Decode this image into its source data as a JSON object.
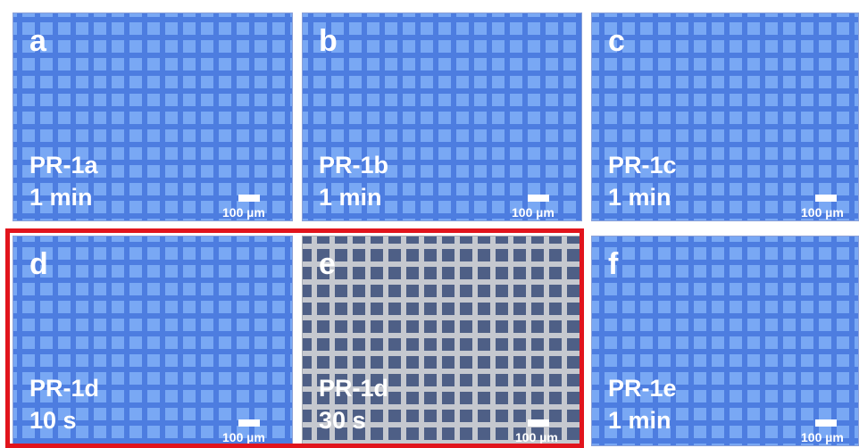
{
  "panels": [
    {
      "letter": "a",
      "sample": "PR-1a",
      "time": "1 min",
      "scale": "100 µm",
      "style": "blue"
    },
    {
      "letter": "b",
      "sample": "PR-1b",
      "time": "1 min",
      "scale": "100 µm",
      "style": "blue"
    },
    {
      "letter": "c",
      "sample": "PR-1c",
      "time": "1 min",
      "scale": "100 µm",
      "style": "blue"
    },
    {
      "letter": "d",
      "sample": "PR-1d",
      "time": "10 s",
      "scale": "100 µm",
      "style": "blue"
    },
    {
      "letter": "e",
      "sample": "PR-1d",
      "time": "30 s",
      "scale": "100 µm",
      "style": "gray"
    },
    {
      "letter": "f",
      "sample": "PR-1e",
      "time": "1 min",
      "scale": "100 µm",
      "style": "blue"
    }
  ],
  "colors": {
    "panel_blue": "#4d7de0",
    "square_blue": "#79a8f4",
    "panel_gray": "#c5c8cf",
    "square_gray": "#4e5f86",
    "highlight": "#e1141c",
    "text": "#ffffff"
  }
}
